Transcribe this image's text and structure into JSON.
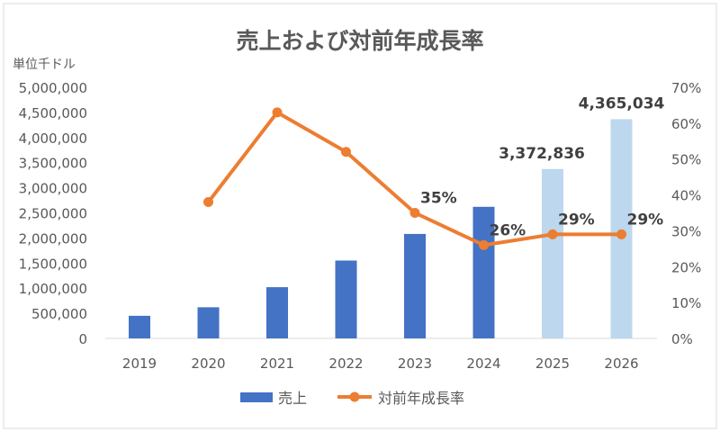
{
  "chart_data": {
    "type": "bar+line",
    "title": "売上および対前年成長率",
    "unit_label": "単位千ドル",
    "categories": [
      "2019",
      "2020",
      "2021",
      "2022",
      "2023",
      "2024",
      "2025",
      "2026"
    ],
    "series": [
      {
        "name": "売上",
        "type": "bar",
        "axis": "left",
        "values": [
          450000,
          620000,
          1020000,
          1550000,
          2080000,
          2620000,
          3372836,
          4365034
        ],
        "colors": [
          "#4472C4",
          "#4472C4",
          "#4472C4",
          "#4472C4",
          "#4472C4",
          "#4472C4",
          "#BDD7EE",
          "#BDD7EE"
        ],
        "data_labels": [
          null,
          null,
          null,
          null,
          null,
          null,
          "3,372,836",
          "4,365,034"
        ]
      },
      {
        "name": "対前年成長率",
        "type": "line",
        "axis": "right",
        "color": "#ED7D31",
        "values": [
          null,
          38,
          63,
          52,
          35,
          26,
          29,
          29
        ],
        "data_labels": [
          null,
          null,
          null,
          null,
          "35%",
          "26%",
          "29%",
          "29%"
        ]
      }
    ],
    "y_left": {
      "range": [
        0,
        5000000
      ],
      "ticks": [
        "0",
        "500,000",
        "1,000,000",
        "1,500,000",
        "2,000,000",
        "2,500,000",
        "3,000,000",
        "3,500,000",
        "4,000,000",
        "4,500,000",
        "5,000,000"
      ]
    },
    "y_right": {
      "range": [
        0,
        70
      ],
      "ticks": [
        "0%",
        "10%",
        "20%",
        "30%",
        "40%",
        "50%",
        "60%",
        "70%"
      ]
    },
    "grid": false,
    "legend": {
      "placement": "bottom",
      "entries": [
        "売上",
        "対前年成長率"
      ]
    }
  }
}
